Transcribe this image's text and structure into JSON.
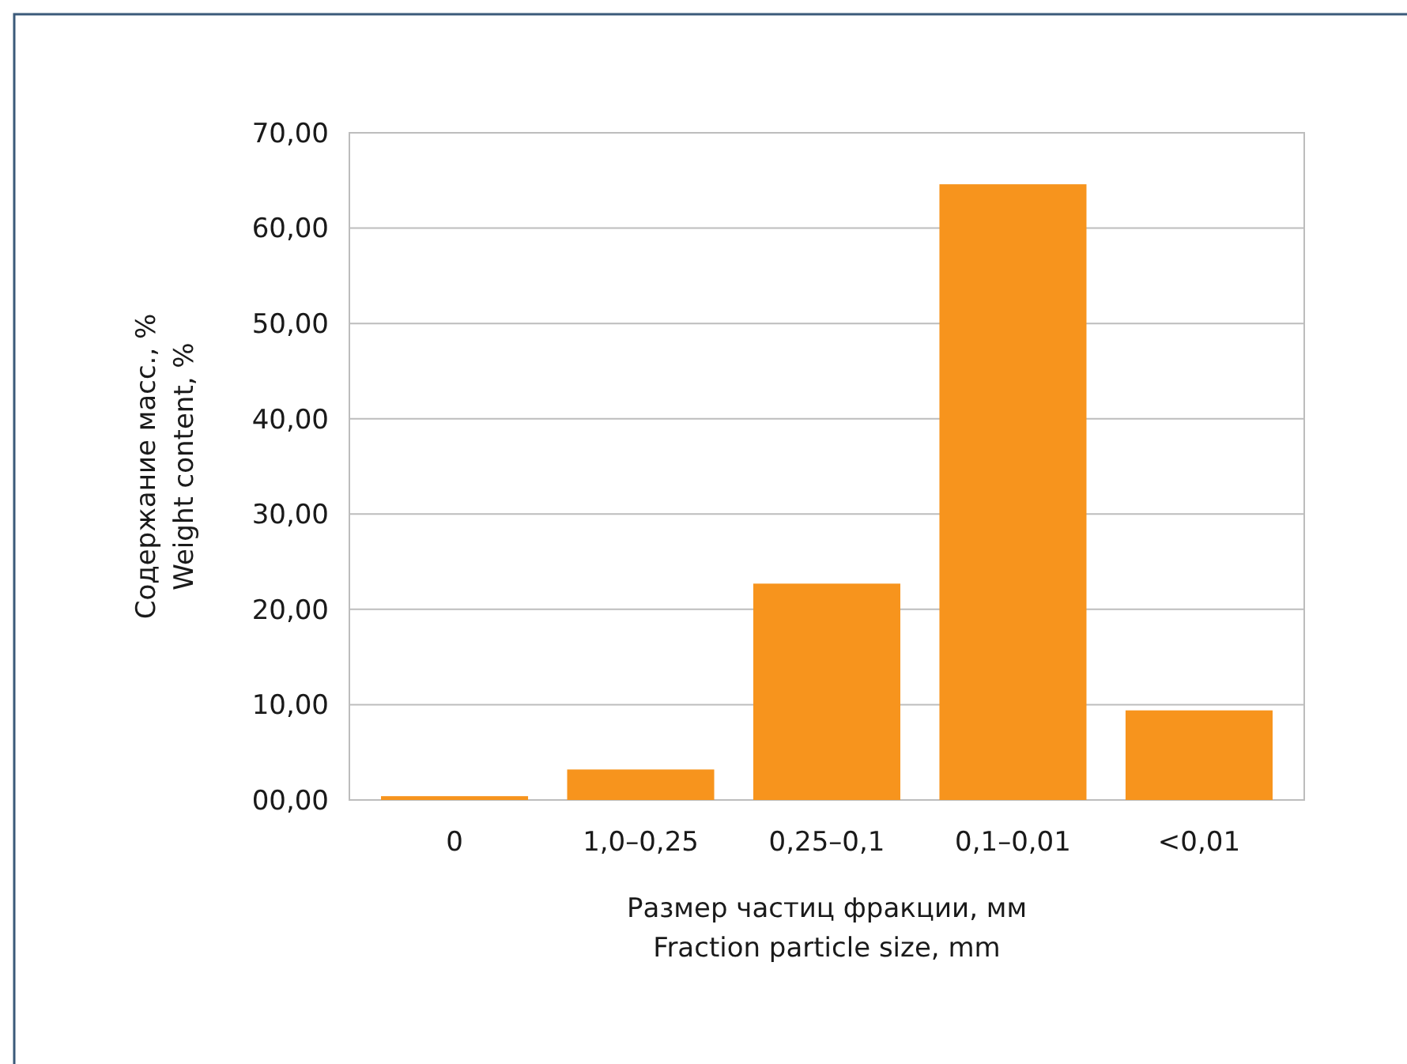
{
  "chart_data": {
    "type": "bar",
    "xlabel": "Размер частиц фракции, мм\nFraction particle size, mm",
    "ylabel": "Содержание масс., %\nWeight content, %",
    "categories": [
      "0",
      "1,0–0,25",
      "0,25–0,1",
      "0,1–0,01",
      "<0,01"
    ],
    "values": [
      0.4,
      3.2,
      22.7,
      64.6,
      9.4
    ],
    "color": "#f7941d",
    "ylim": [
      0,
      70
    ],
    "yticks": [
      {
        "value": 0,
        "label": "00,00"
      },
      {
        "value": 10,
        "label": "10,00"
      },
      {
        "value": 20,
        "label": "20,00"
      },
      {
        "value": 30,
        "label": "30,00"
      },
      {
        "value": 40,
        "label": "40,00"
      },
      {
        "value": 50,
        "label": "50,00"
      },
      {
        "value": 60,
        "label": "60,00"
      },
      {
        "value": 70,
        "label": "70,00"
      }
    ],
    "grid": "y"
  }
}
